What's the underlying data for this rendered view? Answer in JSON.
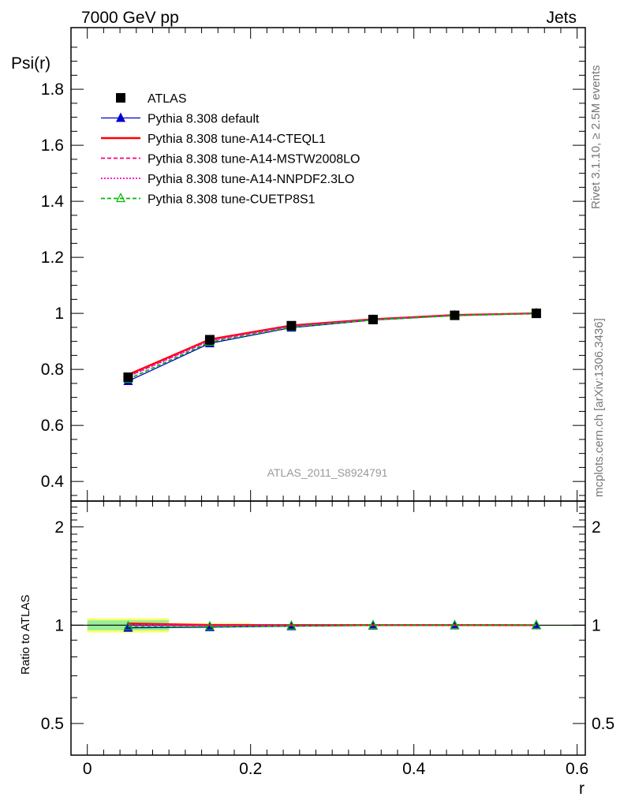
{
  "header": {
    "left_label": "7000 GeV pp",
    "right_label": "Jets",
    "side_label_top": "Rivet 3.1.10, ≥ 2.5M events",
    "side_label_bottom": "mcplots.cern.ch [arXiv:1306.3436]",
    "analysis_label": "ATLAS_2011_S8924791"
  },
  "colors": {
    "data": "#000000",
    "default": "#0000cc",
    "cteql1": "#ff0000",
    "mstw": "#ff0077",
    "nnpdf": "#ff00cc",
    "cuetp8s1": "#00bb00",
    "band_yellow": "#ffff66",
    "band_green": "#99ee99"
  },
  "chart_data": [
    {
      "type": "line",
      "panel": "main",
      "ylabel": "Psi(r)",
      "xlim": [
        -0.02,
        0.61
      ],
      "ylim": [
        0.33,
        2.02
      ],
      "yticks": [
        0.4,
        0.6,
        0.8,
        1,
        1.2,
        1.4,
        1.6,
        1.8
      ],
      "ytick_labels": [
        "0.4",
        "0.6",
        "0.8",
        "1",
        "1.2",
        "1.4",
        "1.6",
        "1.8"
      ],
      "x": [
        0.05,
        0.15,
        0.25,
        0.35,
        0.45,
        0.55
      ],
      "legend_position": "top-left",
      "series": [
        {
          "name": "ATLAS",
          "key": "data",
          "marker": "square",
          "line": "none",
          "values": [
            0.772,
            0.906,
            0.956,
            0.978,
            0.993,
            1.0
          ]
        },
        {
          "name": "Pythia 8.308 default",
          "key": "default",
          "marker": "triangle",
          "line": "solid",
          "values": [
            0.758,
            0.893,
            0.949,
            0.976,
            0.992,
            1.0
          ]
        },
        {
          "name": "Pythia 8.308 tune-A14-CTEQL1",
          "key": "cteql1",
          "marker": "none",
          "line": "solid-thick",
          "values": [
            0.781,
            0.907,
            0.957,
            0.979,
            0.994,
            1.0
          ]
        },
        {
          "name": "Pythia 8.308 tune-A14-MSTW2008LO",
          "key": "mstw",
          "marker": "none",
          "line": "dashed",
          "values": [
            0.776,
            0.904,
            0.955,
            0.978,
            0.993,
            1.0
          ]
        },
        {
          "name": "Pythia 8.308 tune-A14-NNPDF2.3LO",
          "key": "nnpdf",
          "marker": "none",
          "line": "dotted",
          "values": [
            0.774,
            0.902,
            0.954,
            0.978,
            0.993,
            1.0
          ]
        },
        {
          "name": "Pythia 8.308 tune-CUETP8S1",
          "key": "cuetp8s1",
          "marker": "open-triangle",
          "line": "dashed",
          "values": [
            0.765,
            0.897,
            0.951,
            0.977,
            0.992,
            1.0
          ]
        }
      ]
    },
    {
      "type": "line",
      "panel": "ratio",
      "xlabel": "r",
      "ylabel": "Ratio to ATLAS",
      "xlim": [
        -0.02,
        0.61
      ],
      "ylim": [
        0.4,
        2.4
      ],
      "log_y": true,
      "yticks": [
        0.5,
        1,
        2
      ],
      "ytick_labels": [
        "0.5",
        "1",
        "2"
      ],
      "xticks": [
        0,
        0.2,
        0.4,
        0.6
      ],
      "xtick_labels": [
        "0",
        "0.2",
        "0.4",
        "0.6"
      ],
      "x": [
        0.05,
        0.15,
        0.25,
        0.35,
        0.45,
        0.55
      ],
      "band_yellow": {
        "low": [
          0.95,
          0.985,
          0.992,
          0.996,
          0.998,
          0.999
        ],
        "high": [
          1.05,
          1.015,
          1.008,
          1.004,
          1.002,
          1.001
        ]
      },
      "band_green": {
        "low": [
          0.965,
          0.99,
          0.995,
          0.997,
          0.999,
          0.9995
        ],
        "high": [
          1.035,
          1.01,
          1.005,
          1.003,
          1.001,
          1.0005
        ]
      },
      "series": [
        {
          "key": "default",
          "values": [
            0.982,
            0.986,
            0.993,
            0.998,
            0.999,
            1.0
          ]
        },
        {
          "key": "cteql1",
          "values": [
            1.012,
            1.001,
            1.001,
            1.001,
            1.001,
            1.0
          ]
        },
        {
          "key": "mstw",
          "values": [
            1.005,
            0.998,
            0.999,
            1.0,
            1.0,
            1.0
          ]
        },
        {
          "key": "nnpdf",
          "values": [
            1.003,
            0.996,
            0.998,
            1.0,
            1.0,
            1.0
          ]
        },
        {
          "key": "cuetp8s1",
          "values": [
            0.991,
            0.99,
            0.995,
            0.999,
            0.999,
            1.0
          ]
        }
      ]
    }
  ]
}
